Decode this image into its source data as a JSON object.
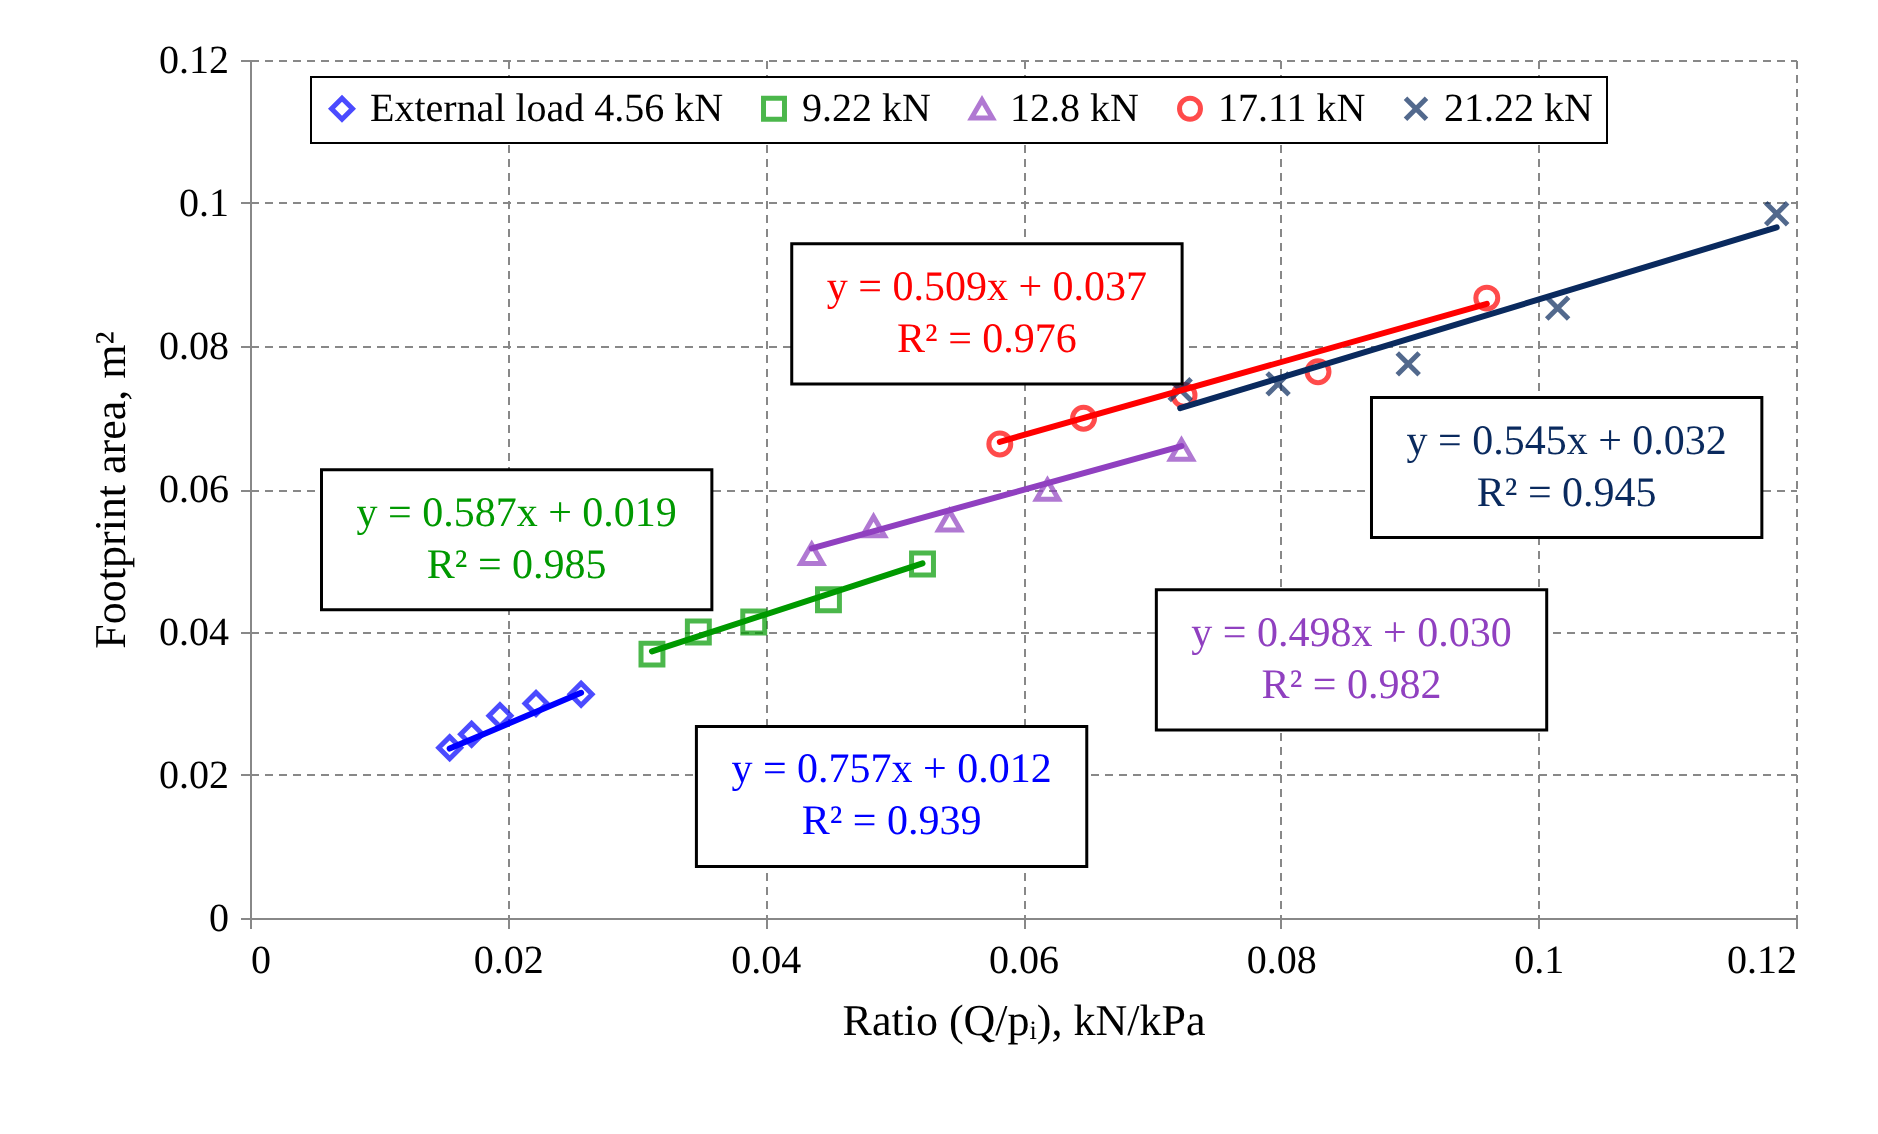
{
  "chart_data": {
    "type": "scatter",
    "xlabel": "Ratio (Q/pᵢ), kN/kPa",
    "ylabel": "Footprint area, m²",
    "xlim": [
      0,
      0.12
    ],
    "xticks": [
      0,
      0.02,
      0.04,
      0.06,
      0.08,
      0.1,
      0.12
    ],
    "ylim": [
      0,
      0.12
    ],
    "yticks": [
      0,
      0.02,
      0.04,
      0.06,
      0.08,
      0.1,
      0.12
    ],
    "grid": true,
    "legend": "top",
    "series": [
      {
        "name": "External load 4.56 kN",
        "color": "#0000ff",
        "marker": "diamond",
        "x": [
          0.0155,
          0.0172,
          0.0194,
          0.0222,
          0.0257
        ],
        "values": [
          0.0238,
          0.0257,
          0.0283,
          0.03,
          0.0313
        ]
      },
      {
        "name": "9.22 kN",
        "color": "#009900",
        "marker": "square",
        "x": [
          0.0312,
          0.0348,
          0.0391,
          0.0449,
          0.0522
        ],
        "values": [
          0.0369,
          0.04,
          0.0414,
          0.0445,
          0.0495
        ]
      },
      {
        "name": "12.8 kN",
        "color": "#9040c0",
        "marker": "triangle",
        "x": [
          0.0436,
          0.0484,
          0.0543,
          0.0619,
          0.0723
        ],
        "values": [
          0.0509,
          0.0548,
          0.0556,
          0.0599,
          0.0655
        ]
      },
      {
        "name": "17.11 kN",
        "color": "#ff0000",
        "marker": "circle",
        "x": [
          0.0582,
          0.0647,
          0.0725,
          0.0829,
          0.096
        ],
        "values": [
          0.0663,
          0.0699,
          0.0731,
          0.0764,
          0.0867
        ]
      },
      {
        "name": "21.22 kN",
        "color": "#0a2a5e",
        "marker": "cross",
        "x": [
          0.0722,
          0.0798,
          0.0899,
          0.1015,
          0.1185
        ],
        "values": [
          0.0739,
          0.0747,
          0.0775,
          0.0853,
          0.0985
        ]
      },
      {
        "type": "line",
        "color": "#0000ff",
        "x": [
          0.0155,
          0.0257
        ],
        "values": [
          0.0237,
          0.0315
        ]
      },
      {
        "type": "line",
        "color": "#009900",
        "x": [
          0.0312,
          0.0522
        ],
        "values": [
          0.0373,
          0.0496
        ]
      },
      {
        "type": "line",
        "color": "#9040c0",
        "x": [
          0.0436,
          0.0723
        ],
        "values": [
          0.0517,
          0.066
        ]
      },
      {
        "type": "line",
        "color": "#ff0000",
        "x": [
          0.0582,
          0.096
        ],
        "values": [
          0.0666,
          0.0859
        ]
      },
      {
        "type": "line",
        "color": "#0a2a5e",
        "x": [
          0.0722,
          0.1185
        ],
        "values": [
          0.0713,
          0.0966
        ]
      }
    ],
    "annotations": [
      "y = 0.757x + 0.012\nR² = 0.939",
      "y = 0.587x + 0.019\nR² = 0.985",
      "y = 0.498x + 0.030\nR² = 0.982",
      "y = 0.509x + 0.037\nR² = 0.976",
      "y = 0.545x + 0.032\nR² = 0.945"
    ]
  }
}
